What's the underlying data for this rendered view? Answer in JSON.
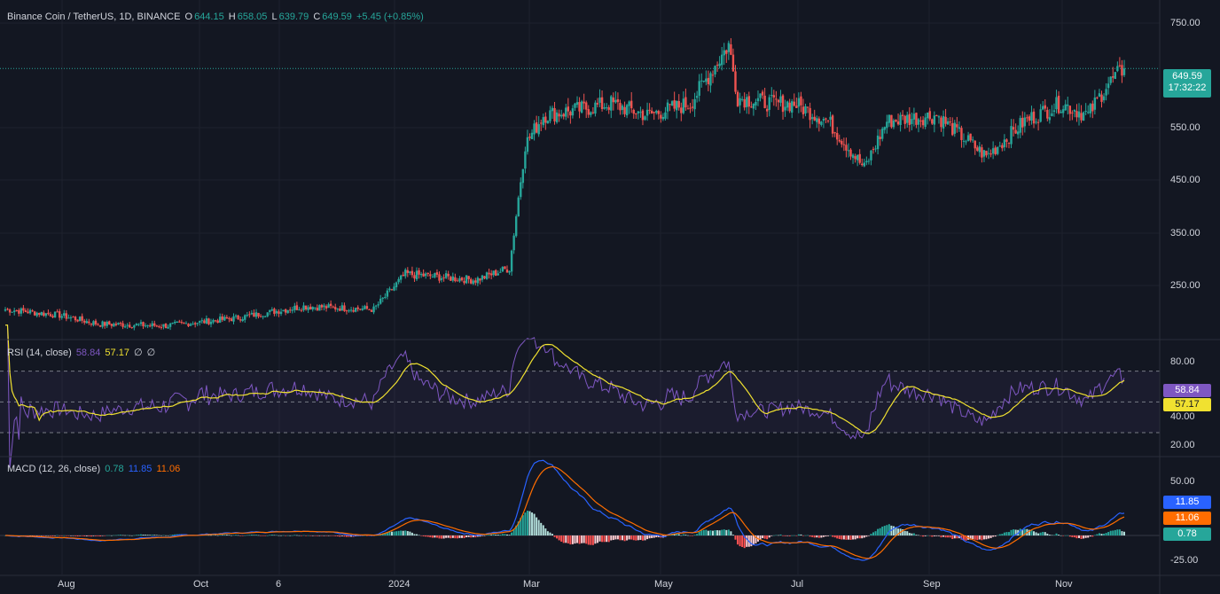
{
  "header": {
    "symbol": "Binance Coin / TetherUS, 1D, BINANCE",
    "o_label": "O",
    "o_value": "644.15",
    "h_label": "H",
    "h_value": "658.05",
    "l_label": "L",
    "l_value": "639.79",
    "c_label": "C",
    "c_value": "649.59",
    "change": "+5.45 (+0.85%)"
  },
  "price_axis": [
    "750.00",
    "550.00",
    "450.00",
    "350.00",
    "250.00"
  ],
  "last_price": {
    "value": "649.59",
    "countdown": "17:32:22"
  },
  "time_axis": [
    "Aug",
    "Oct",
    "6",
    "2024",
    "Mar",
    "May",
    "Jul",
    "Sep",
    "Nov"
  ],
  "rsi": {
    "title": "RSI (14, close)",
    "rsi_value": "58.84",
    "ma_value": "57.17",
    "extra1": "∅",
    "extra2": "∅",
    "axis": [
      "80.00",
      "40.00",
      "20.00"
    ]
  },
  "macd": {
    "title": "MACD (12, 26, close)",
    "hist_value": "0.78",
    "macd_value": "11.85",
    "signal_value": "11.06",
    "axis": [
      "50.00",
      "-25.00"
    ]
  },
  "colors": {
    "background": "#131722",
    "up": "#26a69a",
    "down": "#ef5350",
    "rsi_line": "#7e57c2",
    "rsi_ma": "#f0e130",
    "macd_line": "#2962ff",
    "signal_line": "#ff6d00"
  },
  "chart_data": {
    "type": "candlestick",
    "x": [
      "2023-07-22",
      "2023-08-15",
      "2023-09-01",
      "2023-10-01",
      "2023-11-01",
      "2023-12-01",
      "2024-01-01",
      "2024-01-15",
      "2024-02-15",
      "2024-03-01",
      "2024-03-08",
      "2024-03-16",
      "2024-04-01",
      "2024-04-15",
      "2024-05-01",
      "2024-05-20",
      "2024-06-06",
      "2024-06-10",
      "2024-06-25",
      "2024-07-05",
      "2024-07-20",
      "2024-08-05",
      "2024-08-15",
      "2024-09-06",
      "2024-09-28",
      "2024-10-15",
      "2024-10-31",
      "2024-11-12",
      "2024-11-20",
      "2024-11-28"
    ],
    "close": [
      240,
      230,
      215,
      212,
      225,
      245,
      240,
      300,
      290,
      310,
      520,
      570,
      580,
      590,
      570,
      590,
      690,
      600,
      590,
      590,
      560,
      480,
      560,
      570,
      500,
      560,
      590,
      570,
      620,
      650
    ],
    "ylim": [
      190,
      760
    ],
    "rsi": {
      "ylim": [
        15,
        90
      ],
      "upper_band": 70,
      "lower_band": 30
    },
    "macd": {
      "ylim": [
        -35,
        70
      ]
    }
  }
}
